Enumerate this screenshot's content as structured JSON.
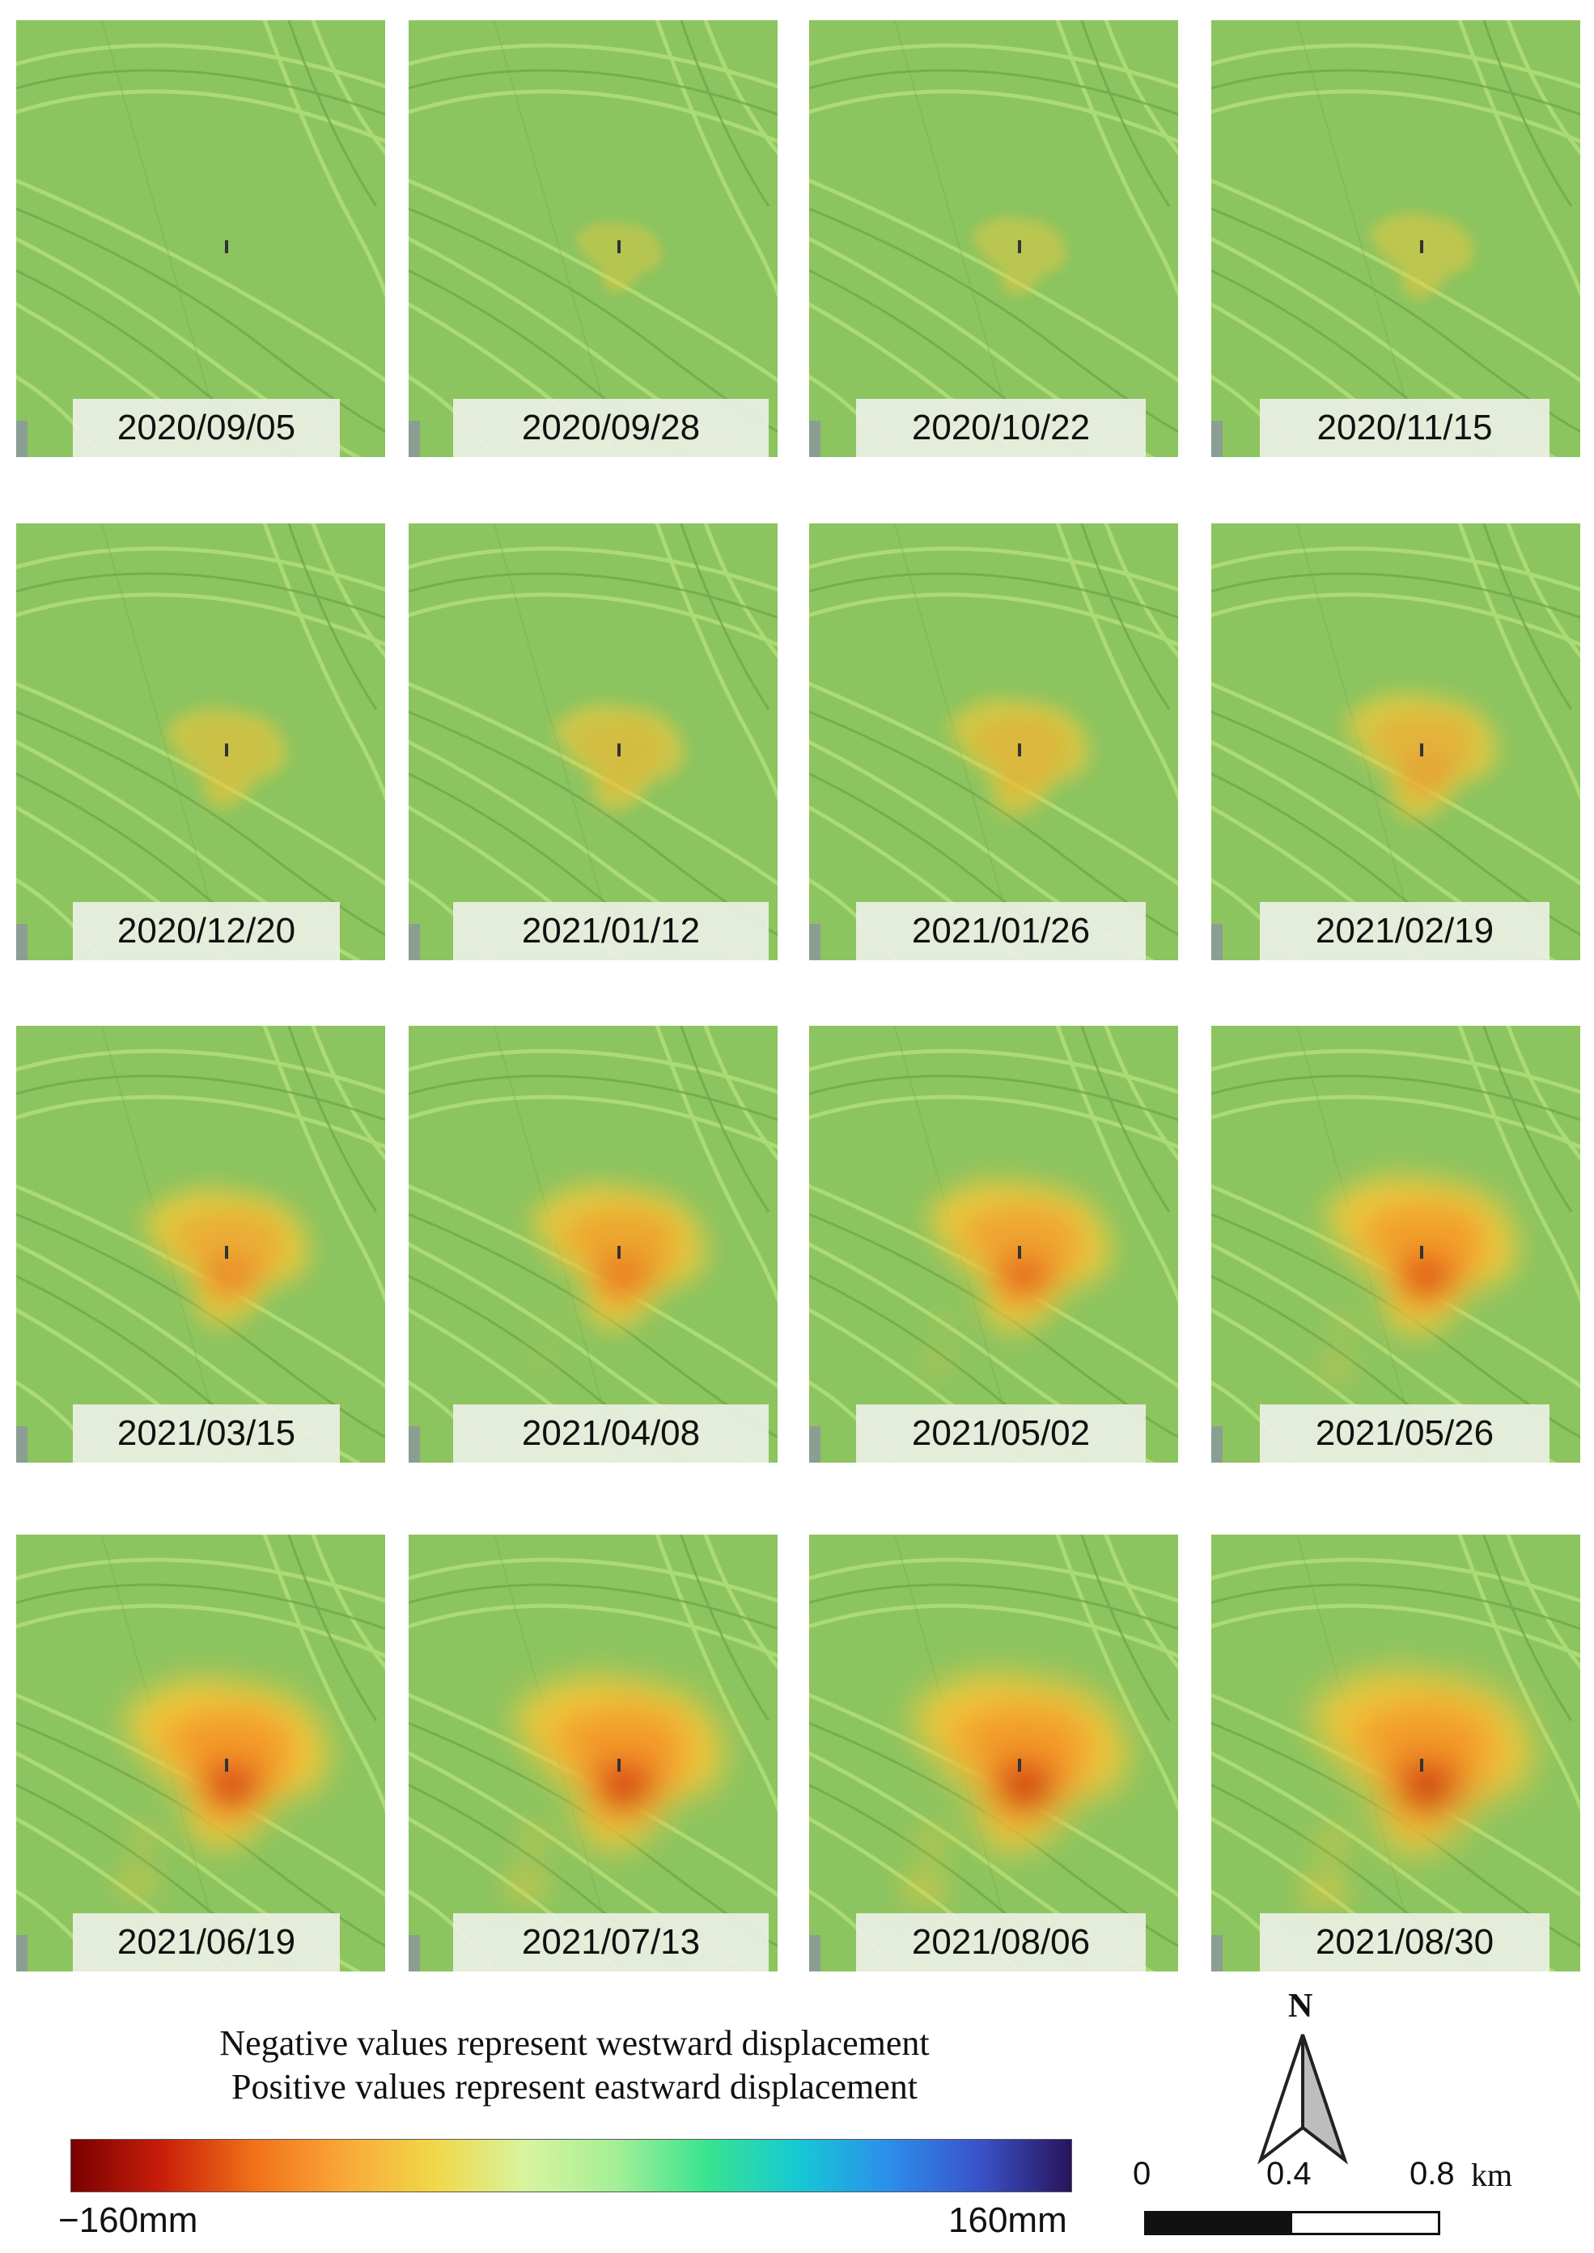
{
  "panels": [
    {
      "date": "2020/09/05",
      "level": 0.0
    },
    {
      "date": "2020/09/28",
      "level": 0.06
    },
    {
      "date": "2020/10/22",
      "level": 0.12
    },
    {
      "date": "2020/11/15",
      "level": 0.18
    },
    {
      "date": "2020/12/20",
      "level": 0.3
    },
    {
      "date": "2021/01/12",
      "level": 0.36
    },
    {
      "date": "2021/01/26",
      "level": 0.44
    },
    {
      "date": "2021/02/19",
      "level": 0.52
    },
    {
      "date": "2021/03/15",
      "level": 0.62
    },
    {
      "date": "2021/04/08",
      "level": 0.68
    },
    {
      "date": "2021/05/02",
      "level": 0.74
    },
    {
      "date": "2021/05/26",
      "level": 0.8
    },
    {
      "date": "2021/06/19",
      "level": 0.88
    },
    {
      "date": "2021/07/13",
      "level": 0.92
    },
    {
      "date": "2021/08/06",
      "level": 0.96
    },
    {
      "date": "2021/08/30",
      "level": 1.0
    }
  ],
  "legend": {
    "line1": "Negative values represent westward displacement",
    "line2": "Positive values represent eastward displacement",
    "min_label": "−160mm",
    "max_label": "160mm",
    "gradient_colors": [
      "#7a0000",
      "#c81e0a",
      "#f07018",
      "#f9a838",
      "#f1d848",
      "#d8f4a0",
      "#a4ef96",
      "#38e490",
      "#16c8d4",
      "#2c8eea",
      "#3a52c8",
      "#28145c"
    ]
  },
  "scale_bar": {
    "labels": [
      "0",
      "0.4",
      "0.8"
    ],
    "unit": "km"
  },
  "north_arrow": {
    "letter": "N"
  },
  "colors": {
    "background_green": "#8cc460",
    "stripe_light": "#b4e078",
    "stripe_dark": "#6ea448"
  }
}
